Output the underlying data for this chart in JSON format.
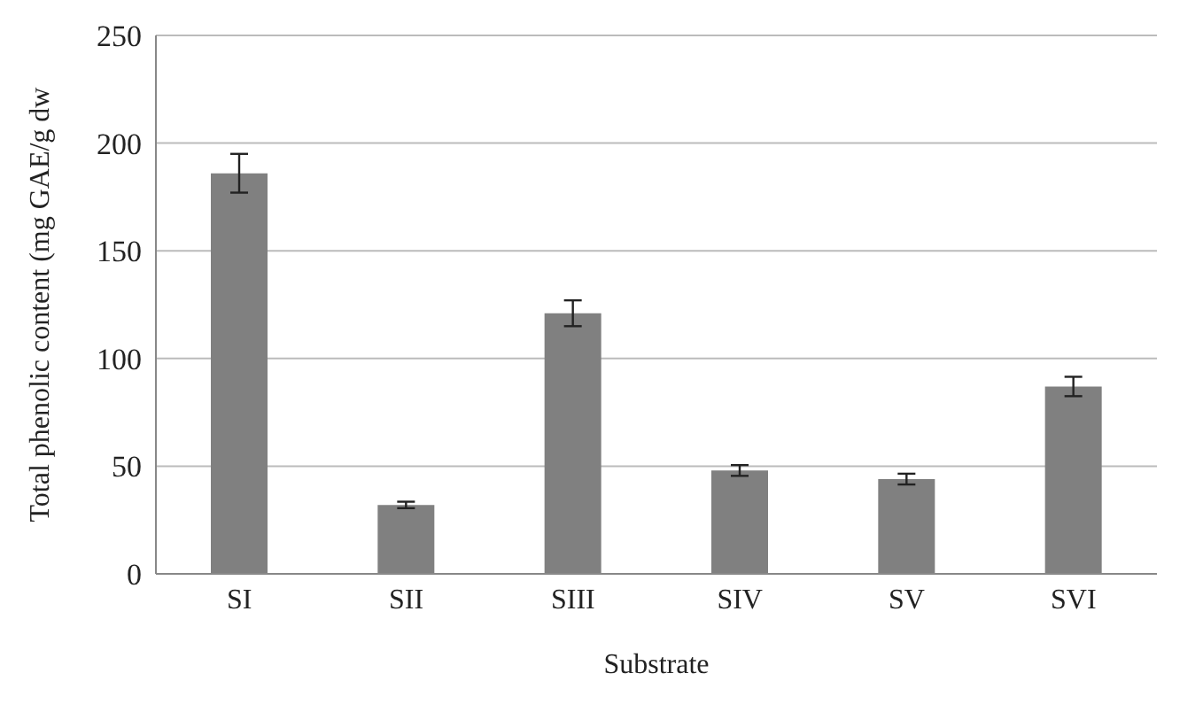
{
  "chart_data": {
    "type": "bar",
    "xlabel": "Substrate",
    "ylabel": "Total phenolic content (mg GAE/g dw",
    "categories": [
      "SI",
      "SII",
      "SIII",
      "SIV",
      "SV",
      "SVI"
    ],
    "values": [
      186,
      32,
      121,
      48,
      44,
      87
    ],
    "errors": [
      9,
      1.5,
      6,
      2.5,
      2.5,
      4.5
    ],
    "color": "#808080",
    "ylim": [
      0,
      250
    ],
    "yticks": [
      0,
      50,
      100,
      150,
      200,
      250
    ],
    "grid": "y"
  }
}
